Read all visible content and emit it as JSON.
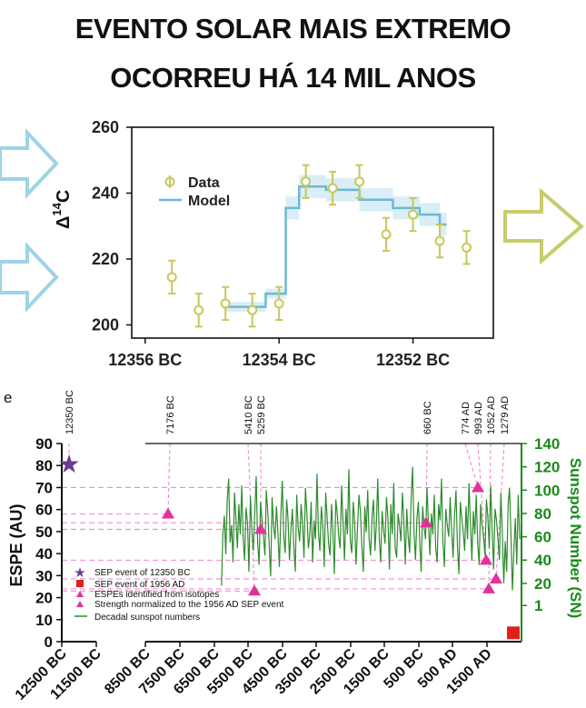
{
  "page": {
    "title_line1": "EVENTO SOLAR MAIS EXTREMO",
    "title_line2": "OCORREU HÁ 14 MIL ANOS"
  },
  "decor": {
    "arrows_left_color": "#9fd3e6",
    "arrow_right_color": "#c7cc6a",
    "icons": [
      "arrow-right-icon",
      "arrow-right-icon",
      "arrow-right-icon"
    ]
  },
  "chart_data": [
    {
      "type": "line",
      "ylabel": "Δ14C",
      "ylabel_main": "Δ",
      "ylabel_sup": "14",
      "ylabel_tail": "C",
      "ylim": [
        196,
        260
      ],
      "xlim": [
        12356.2,
        12350.8
      ],
      "x_reversed": true,
      "xticks": [
        {
          "value": 12356,
          "label": "12356 BC"
        },
        {
          "value": 12354,
          "label": "12354 BC"
        },
        {
          "value": 12352,
          "label": "12352 BC"
        }
      ],
      "yticks": [
        200,
        220,
        240,
        260
      ],
      "legend": [
        {
          "name": "Data",
          "color": "#c8c85a"
        },
        {
          "name": "Model",
          "color": "#6fb7d3"
        }
      ],
      "legend_position": "top-left",
      "colors": {
        "data": "#c8c85a",
        "model": "#6fb7d3",
        "band": "#d9eef6"
      },
      "series": [
        {
          "name": "Data",
          "points": [
            {
              "x": 12355.6,
              "y": 214.5,
              "err": 5
            },
            {
              "x": 12355.2,
              "y": 204.5,
              "err": 5
            },
            {
              "x": 12354.8,
              "y": 206.5,
              "err": 5
            },
            {
              "x": 12354.4,
              "y": 204.5,
              "err": 5
            },
            {
              "x": 12354.0,
              "y": 206.5,
              "err": 5
            },
            {
              "x": 12353.6,
              "y": 243.5,
              "err": 5
            },
            {
              "x": 12353.2,
              "y": 241.5,
              "err": 5
            },
            {
              "x": 12352.8,
              "y": 243.5,
              "err": 5
            },
            {
              "x": 12352.4,
              "y": 227.5,
              "err": 5
            },
            {
              "x": 12352.0,
              "y": 233.5,
              "err": 5
            },
            {
              "x": 12351.6,
              "y": 225.5,
              "err": 5
            },
            {
              "x": 12351.2,
              "y": 223.5,
              "err": 5
            }
          ]
        },
        {
          "name": "Model",
          "steps": [
            {
              "x0": 12354.8,
              "x1": 12354.2,
              "y": 205.5
            },
            {
              "x0": 12354.2,
              "x1": 12353.9,
              "y": 209.5
            },
            {
              "x0": 12353.9,
              "x1": 12353.7,
              "y": 235.5
            },
            {
              "x0": 12353.7,
              "x1": 12353.3,
              "y": 242
            },
            {
              "x0": 12353.3,
              "x1": 12352.8,
              "y": 241
            },
            {
              "x0": 12352.8,
              "x1": 12352.3,
              "y": 238
            },
            {
              "x0": 12352.3,
              "x1": 12351.9,
              "y": 235.5
            },
            {
              "x0": 12351.9,
              "x1": 12351.6,
              "y": 233.5
            },
            {
              "x0": 12351.6,
              "x1": 12351.5,
              "y": 230.5
            }
          ]
        }
      ]
    },
    {
      "type": "scatter",
      "panel_label": "e",
      "ylabel": "ESPE (AU)",
      "y2label": "Sunspot Number (SN)",
      "ylim": [
        0,
        90
      ],
      "y2lim": [
        -30,
        140
      ],
      "yticks": [
        0,
        10,
        20,
        30,
        40,
        50,
        60,
        70,
        80,
        90
      ],
      "y2ticks": [
        1,
        20,
        40,
        60,
        80,
        100,
        120,
        140
      ],
      "colors": {
        "axis_right": "#1a8a1a",
        "sunspot": "#2e8b2e",
        "espe": "#e0329a",
        "sep_12350": "#6a3d8f",
        "sep_1956": "#e0201c",
        "dash": "#f08ad0"
      },
      "xticks": [
        "12500 BC",
        "11500 BC",
        "8500 BC",
        "7500 BC",
        "6500 BC",
        "5500 BC",
        "4500 BC",
        "3500 BC",
        "2500 BC",
        "1500 BC",
        "500 BC",
        "500 AD",
        "1500 AD"
      ],
      "event_labels": [
        "12350 BC",
        "7176 BC",
        "5410 BC",
        "5259 BC",
        "660 BC",
        "774 AD",
        "993 AD",
        "1052 AD",
        "1279 AD"
      ],
      "legend": [
        {
          "name": "SEP event of 12350 BC",
          "marker": "star"
        },
        {
          "name": "SEP event of 1956 AD",
          "marker": "square"
        },
        {
          "name": "ESPEs identified from isotopes",
          "marker": "triangle"
        },
        {
          "name": "Strength normalized to the 1956 AD SEP event",
          "marker": "none"
        },
        {
          "name": "Decadal sunspot numbers",
          "marker": "line"
        }
      ],
      "legend_position": "bottom-left",
      "events": [
        {
          "label": "12350 BC",
          "year": -12350,
          "espe": 80.5,
          "marker": "star"
        },
        {
          "label": "7176 BC",
          "year": -7176,
          "espe": 58,
          "marker": "triangle"
        },
        {
          "label": "5410 BC",
          "year": -5410,
          "espe": 23,
          "marker": "triangle"
        },
        {
          "label": "5259 BC",
          "year": -5259,
          "espe": 51,
          "marker": "triangle"
        },
        {
          "label": "660 BC",
          "year": -660,
          "espe": 54,
          "marker": "triangle"
        },
        {
          "label": "774 AD",
          "year": 774,
          "espe": 70,
          "marker": "triangle"
        },
        {
          "label": "993 AD",
          "year": 993,
          "espe": 37,
          "marker": "triangle"
        },
        {
          "label": "1052 AD",
          "year": 1052,
          "espe": 24,
          "marker": "triangle"
        },
        {
          "label": "1279 AD",
          "year": 1279,
          "espe": 28.5,
          "marker": "triangle"
        },
        {
          "label": "1956 AD",
          "year": 1956,
          "espe": 4,
          "marker": "square"
        }
      ],
      "sunspot_decadal": [
        18,
        62,
        78,
        45,
        92,
        110,
        55,
        70,
        38,
        98,
        75,
        50,
        88,
        62,
        104,
        58,
        40,
        85,
        72,
        30,
        95,
        66,
        48,
        80,
        112,
        54,
        36,
        90,
        74,
        60,
        44,
        100,
        82,
        52,
        26,
        94,
        70,
        58,
        86,
        64,
        34,
        78,
        108,
        60,
        46,
        92,
        76,
        40,
        66,
        84,
        52,
        30,
        96,
        68,
        56,
        88,
        72,
        42,
        102,
        80,
        50,
        62,
        90,
        38,
        74,
        58,
        114,
        64,
        48,
        86,
        70,
        34,
        98,
        76,
        54,
        44,
        88,
        66,
        28,
        92,
        80,
        60,
        50,
        104,
        72,
        40,
        84,
        62,
        118,
        56,
        46,
        90,
        74,
        36,
        68,
        96,
        82,
        52,
        30,
        86,
        64,
        100,
        58,
        44,
        78,
        92,
        48,
        70,
        110,
        60,
        38,
        82,
        66,
        54,
        94,
        76,
        32,
        88,
        62,
        106,
        50,
        42,
        80,
        70,
        56,
        98,
        74,
        36,
        84,
        60,
        46,
        92,
        120,
        64,
        40,
        76,
        90,
        54,
        30,
        86,
        68,
        58,
        102,
        72,
        44,
        80,
        62,
        96,
        50,
        38,
        88,
        74,
        110,
        56,
        34,
        84,
        70,
        60,
        94,
        66,
        42,
        78,
        100,
        52,
        28,
        90,
        76,
        64,
        48,
        86,
        58,
        106,
        72,
        40,
        82,
        62,
        96,
        54,
        36,
        88,
        70,
        60,
        44,
        92,
        78,
        50,
        104,
        66,
        32,
        84,
        74,
        58,
        40,
        98,
        64,
        20,
        56,
        30,
        88,
        102,
        62,
        14,
        48,
        76,
        36,
        96,
        58
      ]
    }
  ]
}
